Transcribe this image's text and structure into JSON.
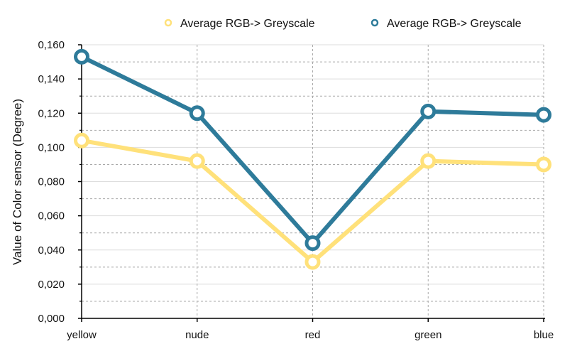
{
  "chart_data": {
    "type": "line",
    "categories": [
      "yellow",
      "nude",
      "red",
      "green",
      "blue"
    ],
    "series": [
      {
        "name": "Average RGB-> Greyscale",
        "color": "#FFE17A",
        "values": [
          0.104,
          0.092,
          0.033,
          0.092,
          0.09
        ]
      },
      {
        "name": "Average RGB-> Greyscale",
        "color": "#2E7B9A",
        "values": [
          0.153,
          0.12,
          0.044,
          0.121,
          0.119
        ]
      }
    ],
    "title": "",
    "xlabel": "",
    "ylabel": "Value of Color sensor (Degree)",
    "ylim": [
      0,
      0.16
    ],
    "yticks": [
      "0,000",
      "0,020",
      "0,040",
      "0,060",
      "0,080",
      "0,100",
      "0,120",
      "0,140",
      "0,160"
    ],
    "grid": true,
    "legend_position": "top-right"
  }
}
